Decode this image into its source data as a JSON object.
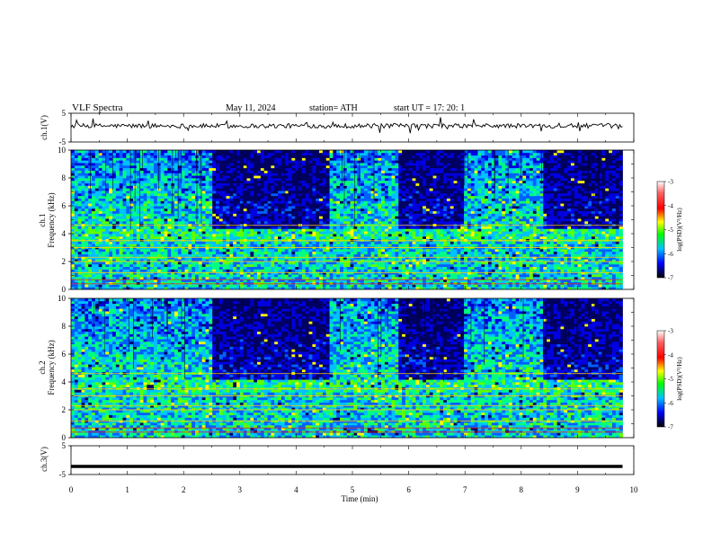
{
  "header": {
    "title": "VLF  Spectra",
    "date": "May 11, 2024",
    "station": "station= ATH",
    "start_ut": "start  UT  =    17: 20: 1"
  },
  "chart_data": {
    "type": "heatmap",
    "xlabel": "Time  (min)",
    "xlim": [
      0,
      10
    ],
    "xticks": [
      "0",
      "1",
      "2",
      "3",
      "4",
      "5",
      "6",
      "7",
      "8",
      "9",
      "10"
    ],
    "data_end_min": 9.8,
    "panels": [
      {
        "id": "ch1-waveform",
        "type": "line",
        "ylabel": "ch.1(V)",
        "ylim": [
          -5,
          5
        ],
        "yticks": [
          "5",
          "-5"
        ],
        "baseline": 0.6,
        "color": "#000000"
      },
      {
        "id": "ch1-spectrogram",
        "type": "heatmap",
        "ylabel": "ch.1\nFrequency  (kHz)",
        "ylabel_lines": [
          "ch.1",
          "Frequency  (kHz)"
        ],
        "ylim": [
          0,
          10
        ],
        "yticks": [
          "0",
          "2",
          "4",
          "6",
          "8",
          "10"
        ],
        "quiet_intervals_min": [
          [
            2.5,
            4.6
          ],
          [
            5.8,
            7.0
          ],
          [
            8.4,
            9.8
          ]
        ],
        "bright_band_khz": [
          3.5,
          4.3
        ]
      },
      {
        "id": "ch2-spectrogram",
        "type": "heatmap",
        "ylabel_lines": [
          "ch.2",
          "Frequency  (kHz)"
        ],
        "ylim": [
          0,
          10
        ],
        "yticks": [
          "0",
          "2",
          "4",
          "6",
          "8",
          "10"
        ],
        "quiet_intervals_min": [
          [
            2.5,
            4.6
          ],
          [
            5.8,
            7.0
          ],
          [
            8.4,
            9.8
          ]
        ],
        "bright_band_khz": [
          3.3,
          4.2
        ]
      },
      {
        "id": "ch3-waveform",
        "type": "line",
        "ylabel": "ch.3(V)",
        "ylim": [
          -5,
          5
        ],
        "yticks": [
          "5",
          "-5"
        ],
        "baseline": -2.2,
        "color": "#000000"
      }
    ],
    "colorbar": {
      "label": "log(PSD)(V²/Hz)",
      "range": [
        -7,
        -3
      ],
      "ticks": [
        "-3",
        "-4",
        "-5",
        "-6",
        "-7"
      ],
      "colors": [
        "#ffffff",
        "#ff0000",
        "#ffff00",
        "#00ff00",
        "#00c0ff",
        "#0000ff",
        "#000000"
      ]
    }
  }
}
